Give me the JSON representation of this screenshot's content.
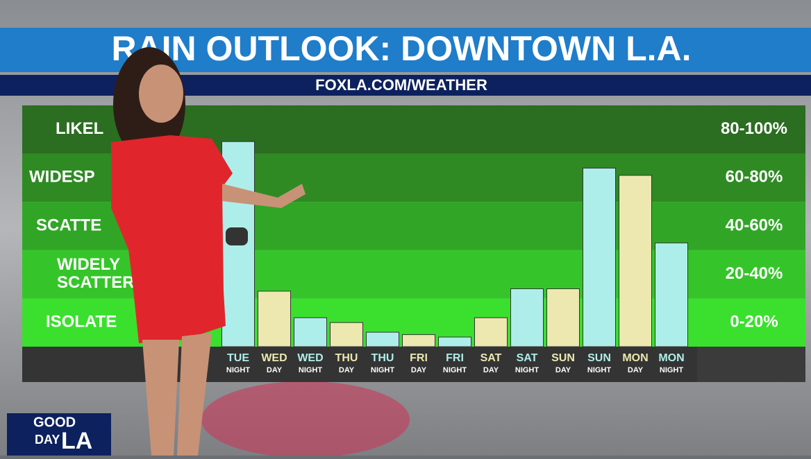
{
  "chart_data": {
    "type": "bar",
    "title": "RAIN OUTLOOK: DOWNTOWN L.A.",
    "subtitle": "FOXLA.COM/WEATHER",
    "categories": [
      [
        "TUE",
        "NIGHT"
      ],
      [
        "WED",
        "DAY"
      ],
      [
        "WED",
        "NIGHT"
      ],
      [
        "THU",
        "DAY"
      ],
      [
        "THU",
        "NIGHT"
      ],
      [
        "FRI",
        "DAY"
      ],
      [
        "FRI",
        "NIGHT"
      ],
      [
        "SAT",
        "DAY"
      ],
      [
        "SAT",
        "NIGHT"
      ],
      [
        "SUN",
        "DAY"
      ],
      [
        "SUN",
        "NIGHT"
      ],
      [
        "MON",
        "DAY"
      ],
      [
        "MON",
        "NIGHT"
      ]
    ],
    "values": [
      85,
      23,
      12,
      10,
      6,
      5,
      4,
      12,
      24,
      24,
      74,
      71,
      43
    ],
    "colors": [
      "#aeeeea",
      "#ece8b0",
      "#aeeeea",
      "#ece8b0",
      "#aeeeea",
      "#ece8b0",
      "#aeeeea",
      "#ece8b0",
      "#aeeeea",
      "#ece8b0",
      "#aeeeea",
      "#ece8b0",
      "#aeeeea"
    ],
    "label_colors": [
      "#aeeeea",
      "#ece8b0",
      "#aeeeea",
      "#ece8b0",
      "#aeeeea",
      "#ece8b0",
      "#aeeeea",
      "#ece8b0",
      "#aeeeea",
      "#ece8b0",
      "#aeeeea",
      "#ece8b0",
      "#aeeeea"
    ],
    "ylim": [
      0,
      100
    ],
    "bands": [
      {
        "lines": [
          "LIKEL"
        ],
        "range": "80-100%",
        "from": 80,
        "to": 100,
        "color": "#2b6d21"
      },
      {
        "lines": [
          "WIDESP"
        ],
        "range": "60-80%",
        "from": 60,
        "to": 80,
        "color": "#2f8a24"
      },
      {
        "lines": [
          "SCATTE"
        ],
        "range": "40-60%",
        "from": 40,
        "to": 60,
        "color": "#31a626"
      },
      {
        "lines": [
          "WIDELY",
          "SCATTER"
        ],
        "range": "20-40%",
        "from": 20,
        "to": 40,
        "color": "#35c52a"
      },
      {
        "lines": [
          "ISOLATE"
        ],
        "range": "0-20%",
        "from": 0,
        "to": 20,
        "color": "#3ae02d"
      }
    ]
  },
  "logo": [
    "GOOD",
    "DAY",
    "LA"
  ]
}
